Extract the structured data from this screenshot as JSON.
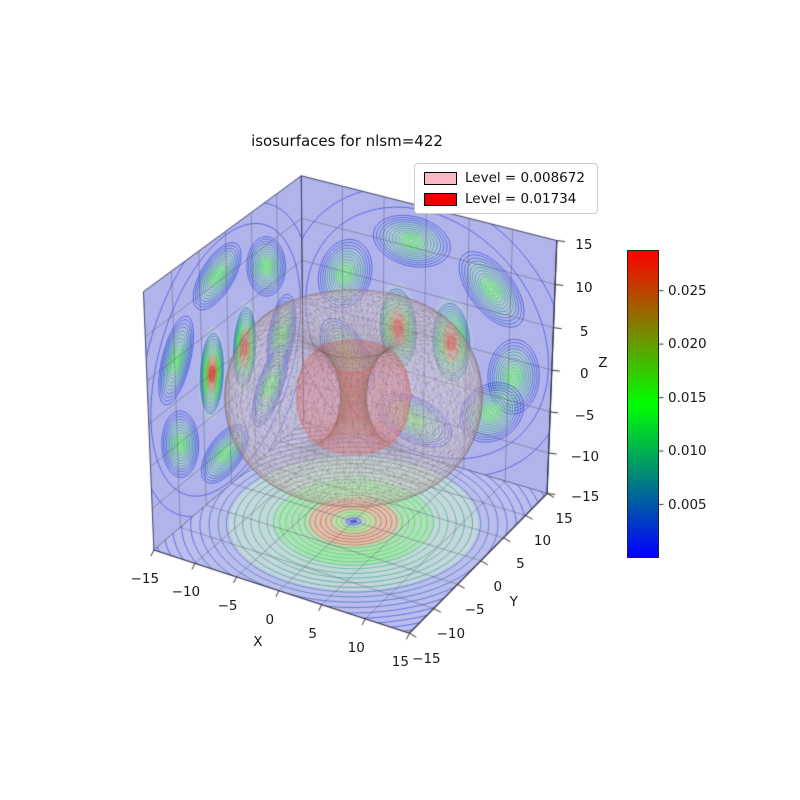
{
  "chart_data": {
    "type": "isosurface3d",
    "title": "isosurfaces for nlsm=422",
    "axes": {
      "x": {
        "label": "X",
        "ticks": [
          "−15",
          "−10",
          "−5",
          "0",
          "5",
          "10",
          "15"
        ],
        "tick_values": [
          -15,
          -10,
          -5,
          0,
          5,
          10,
          15
        ]
      },
      "y": {
        "label": "Y",
        "ticks": [
          "−15",
          "−10",
          "−5",
          "0",
          "5",
          "10",
          "15"
        ],
        "tick_values": [
          -15,
          -10,
          -5,
          0,
          5,
          10,
          15
        ]
      },
      "z": {
        "label": "Z",
        "ticks": [
          "−15",
          "−10",
          "−5",
          "0",
          "5",
          "10",
          "15"
        ],
        "tick_values": [
          -15,
          -10,
          -5,
          0,
          5,
          10,
          15
        ]
      },
      "range": [
        -15,
        15
      ]
    },
    "legend": [
      {
        "label": "Level = 0.008672",
        "color": "#f9b8c4"
      },
      {
        "label": "Level = 0.01734",
        "color": "#ec0000"
      }
    ],
    "colorbar": {
      "min": 0,
      "max": 0.0288,
      "ticks": [
        "0.005",
        "0.010",
        "0.015",
        "0.020",
        "0.025"
      ],
      "tick_values": [
        0.005,
        0.01,
        0.015,
        0.02,
        0.025
      ],
      "stops": [
        [
          0,
          "#0000ff"
        ],
        [
          0.25,
          "#008080"
        ],
        [
          0.5,
          "#00ff00"
        ],
        [
          0.75,
          "#808000"
        ],
        [
          1,
          "#ff0000"
        ]
      ]
    },
    "isosurfaces": [
      {
        "level": 0.008672,
        "color": "#f9b8c4",
        "rho_c": 7.2,
        "a": 5.9,
        "b": 7.9
      },
      {
        "level": 0.01734,
        "color": "#ec0000",
        "rho_c": 3.4,
        "a": 2.4,
        "b": 4.6
      }
    ],
    "view": {
      "elev": 30,
      "azim": -60,
      "dist": 10,
      "scale": 2950,
      "cx": 353.5,
      "cy": 396.7
    },
    "panes": {
      "wall_color": "#b1b4ea",
      "floor_color": "#bbbeec"
    },
    "wall_pattern": {
      "ring_radius": 10.8,
      "ring_angles": [
        -11,
        44,
        99,
        154,
        209,
        264,
        319
      ],
      "center_blob_h": 3.2
    },
    "floor_pattern": {
      "fills": [
        {
          "r": 13.0,
          "color": "rgba(205,240,205,0.5)"
        },
        {
          "r": 8.3,
          "color": "rgba(150,232,150,0.45)"
        },
        {
          "r": 4.7,
          "color": "rgba(255,170,172,0.55)"
        },
        {
          "r": 2.15,
          "color": "rgba(175,240,180,0.5)"
        },
        {
          "r": 0.95,
          "color": "rgba(165,172,240,0.9)"
        },
        {
          "r": 0.4,
          "color": "rgba(60,85,225,0.75)"
        }
      ],
      "profile": [
        [
          0,
          0.06
        ],
        [
          0.9,
          0.25
        ],
        [
          1.6,
          0.5
        ],
        [
          2.6,
          0.8
        ],
        [
          3.4,
          0.95
        ],
        [
          4.6,
          0.78
        ],
        [
          5.6,
          0.58
        ],
        [
          7,
          0.5
        ],
        [
          8.5,
          0.38
        ],
        [
          11,
          0.3
        ],
        [
          13.2,
          0.22
        ],
        [
          15,
          0.13
        ],
        [
          18,
          0.07
        ],
        [
          21,
          0.04
        ]
      ]
    }
  }
}
